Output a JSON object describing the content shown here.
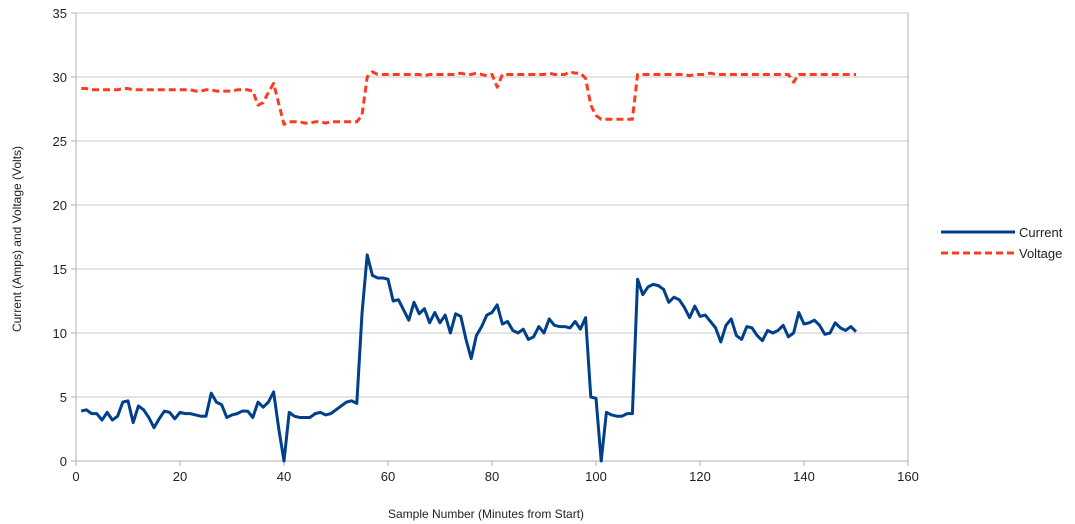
{
  "chart_data": {
    "type": "line",
    "title": "",
    "xlabel": "Sample Number (Minutes from Start)",
    "ylabel": "Current (Amps) and Voltage (Volts)",
    "xlim": [
      0,
      160
    ],
    "ylim": [
      0,
      35
    ],
    "x_ticks": [
      0,
      20,
      40,
      60,
      80,
      100,
      120,
      140,
      160
    ],
    "y_ticks": [
      0,
      5,
      10,
      15,
      20,
      25,
      30,
      35
    ],
    "grid": true,
    "legend_position": "right",
    "series": [
      {
        "name": "Current",
        "color": "#003f8a",
        "style": "solid",
        "points": [
          [
            1,
            3.9
          ],
          [
            2,
            4.0
          ],
          [
            3,
            3.7
          ],
          [
            4,
            3.7
          ],
          [
            5,
            3.2
          ],
          [
            6,
            3.8
          ],
          [
            7,
            3.2
          ],
          [
            8,
            3.5
          ],
          [
            9,
            4.6
          ],
          [
            10,
            4.7
          ],
          [
            11,
            3.0
          ],
          [
            12,
            4.3
          ],
          [
            13,
            4.0
          ],
          [
            14,
            3.4
          ],
          [
            15,
            2.6
          ],
          [
            16,
            3.3
          ],
          [
            17,
            3.9
          ],
          [
            18,
            3.8
          ],
          [
            19,
            3.3
          ],
          [
            20,
            3.8
          ],
          [
            21,
            3.7
          ],
          [
            22,
            3.7
          ],
          [
            23,
            3.6
          ],
          [
            24,
            3.5
          ],
          [
            25,
            3.5
          ],
          [
            26,
            5.3
          ],
          [
            27,
            4.6
          ],
          [
            28,
            4.4
          ],
          [
            29,
            3.4
          ],
          [
            30,
            3.6
          ],
          [
            31,
            3.7
          ],
          [
            32,
            3.9
          ],
          [
            33,
            3.9
          ],
          [
            34,
            3.4
          ],
          [
            35,
            4.6
          ],
          [
            36,
            4.2
          ],
          [
            37,
            4.6
          ],
          [
            38,
            5.4
          ],
          [
            39,
            2.5
          ],
          [
            40,
            0.0
          ],
          [
            41,
            3.8
          ],
          [
            42,
            3.5
          ],
          [
            43,
            3.4
          ],
          [
            44,
            3.4
          ],
          [
            45,
            3.4
          ],
          [
            46,
            3.7
          ],
          [
            47,
            3.8
          ],
          [
            48,
            3.6
          ],
          [
            49,
            3.7
          ],
          [
            50,
            4.0
          ],
          [
            51,
            4.3
          ],
          [
            52,
            4.6
          ],
          [
            53,
            4.7
          ],
          [
            54,
            4.5
          ],
          [
            55,
            11.5
          ],
          [
            56,
            16.1
          ],
          [
            57,
            14.5
          ],
          [
            58,
            14.3
          ],
          [
            59,
            14.3
          ],
          [
            60,
            14.2
          ],
          [
            61,
            12.5
          ],
          [
            62,
            12.6
          ],
          [
            63,
            11.8
          ],
          [
            64,
            11.0
          ],
          [
            65,
            12.4
          ],
          [
            66,
            11.5
          ],
          [
            67,
            11.9
          ],
          [
            68,
            10.8
          ],
          [
            69,
            11.6
          ],
          [
            70,
            10.8
          ],
          [
            71,
            11.4
          ],
          [
            72,
            10.0
          ],
          [
            73,
            11.5
          ],
          [
            74,
            11.3
          ],
          [
            75,
            9.5
          ],
          [
            76,
            8.0
          ],
          [
            77,
            9.8
          ],
          [
            78,
            10.5
          ],
          [
            79,
            11.4
          ],
          [
            80,
            11.6
          ],
          [
            81,
            12.2
          ],
          [
            82,
            10.7
          ],
          [
            83,
            10.9
          ],
          [
            84,
            10.2
          ],
          [
            85,
            10.0
          ],
          [
            86,
            10.3
          ],
          [
            87,
            9.5
          ],
          [
            88,
            9.7
          ],
          [
            89,
            10.5
          ],
          [
            90,
            10.0
          ],
          [
            91,
            11.1
          ],
          [
            92,
            10.6
          ],
          [
            93,
            10.5
          ],
          [
            94,
            10.5
          ],
          [
            95,
            10.4
          ],
          [
            96,
            10.9
          ],
          [
            97,
            10.3
          ],
          [
            98,
            11.2
          ],
          [
            99,
            5.0
          ],
          [
            100,
            4.9
          ],
          [
            101,
            0.0
          ],
          [
            102,
            3.8
          ],
          [
            103,
            3.6
          ],
          [
            104,
            3.5
          ],
          [
            105,
            3.5
          ],
          [
            106,
            3.7
          ],
          [
            107,
            3.7
          ],
          [
            108,
            14.2
          ],
          [
            109,
            13.0
          ],
          [
            110,
            13.6
          ],
          [
            111,
            13.8
          ],
          [
            112,
            13.7
          ],
          [
            113,
            13.4
          ],
          [
            114,
            12.4
          ],
          [
            115,
            12.8
          ],
          [
            116,
            12.6
          ],
          [
            117,
            12.0
          ],
          [
            118,
            11.2
          ],
          [
            119,
            12.1
          ],
          [
            120,
            11.3
          ],
          [
            121,
            11.4
          ],
          [
            122,
            10.9
          ],
          [
            123,
            10.4
          ],
          [
            124,
            9.3
          ],
          [
            125,
            10.6
          ],
          [
            126,
            11.1
          ],
          [
            127,
            9.8
          ],
          [
            128,
            9.5
          ],
          [
            129,
            10.5
          ],
          [
            130,
            10.4
          ],
          [
            131,
            9.8
          ],
          [
            132,
            9.4
          ],
          [
            133,
            10.2
          ],
          [
            134,
            10.0
          ],
          [
            135,
            10.2
          ],
          [
            136,
            10.6
          ],
          [
            137,
            9.7
          ],
          [
            138,
            10.0
          ],
          [
            139,
            11.6
          ],
          [
            140,
            10.7
          ],
          [
            141,
            10.8
          ],
          [
            142,
            11.0
          ],
          [
            143,
            10.6
          ],
          [
            144,
            9.9
          ],
          [
            145,
            10.0
          ],
          [
            146,
            10.8
          ],
          [
            147,
            10.4
          ],
          [
            148,
            10.2
          ],
          [
            149,
            10.5
          ],
          [
            150,
            10.1
          ]
        ]
      },
      {
        "name": "Voltage",
        "color": "#ff3b1f",
        "style": "dashed",
        "points": [
          [
            1,
            29.1
          ],
          [
            2,
            29.1
          ],
          [
            3,
            29.0
          ],
          [
            4,
            29.0
          ],
          [
            5,
            29.0
          ],
          [
            6,
            29.0
          ],
          [
            7,
            29.0
          ],
          [
            8,
            29.0
          ],
          [
            9,
            29.1
          ],
          [
            10,
            29.1
          ],
          [
            11,
            29.0
          ],
          [
            12,
            29.0
          ],
          [
            13,
            29.0
          ],
          [
            14,
            29.0
          ],
          [
            15,
            29.0
          ],
          [
            16,
            29.0
          ],
          [
            17,
            29.0
          ],
          [
            18,
            29.0
          ],
          [
            19,
            29.0
          ],
          [
            20,
            29.0
          ],
          [
            21,
            29.0
          ],
          [
            22,
            29.0
          ],
          [
            23,
            28.9
          ],
          [
            24,
            28.9
          ],
          [
            25,
            29.0
          ],
          [
            26,
            29.0
          ],
          [
            27,
            28.9
          ],
          [
            28,
            28.9
          ],
          [
            29,
            28.9
          ],
          [
            30,
            28.9
          ],
          [
            31,
            29.0
          ],
          [
            32,
            29.0
          ],
          [
            33,
            29.0
          ],
          [
            34,
            28.9
          ],
          [
            35,
            27.8
          ],
          [
            36,
            28.0
          ],
          [
            37,
            28.8
          ],
          [
            38,
            29.5
          ],
          [
            39,
            27.9
          ],
          [
            40,
            26.3
          ],
          [
            41,
            26.5
          ],
          [
            42,
            26.5
          ],
          [
            43,
            26.5
          ],
          [
            44,
            26.4
          ],
          [
            45,
            26.4
          ],
          [
            46,
            26.5
          ],
          [
            47,
            26.5
          ],
          [
            48,
            26.4
          ],
          [
            49,
            26.5
          ],
          [
            50,
            26.5
          ],
          [
            51,
            26.5
          ],
          [
            52,
            26.5
          ],
          [
            53,
            26.5
          ],
          [
            54,
            26.5
          ],
          [
            55,
            27.0
          ],
          [
            56,
            30.0
          ],
          [
            57,
            30.4
          ],
          [
            58,
            30.2
          ],
          [
            59,
            30.2
          ],
          [
            60,
            30.2
          ],
          [
            61,
            30.2
          ],
          [
            62,
            30.2
          ],
          [
            63,
            30.2
          ],
          [
            64,
            30.2
          ],
          [
            65,
            30.2
          ],
          [
            66,
            30.2
          ],
          [
            67,
            30.1
          ],
          [
            68,
            30.2
          ],
          [
            69,
            30.2
          ],
          [
            70,
            30.2
          ],
          [
            71,
            30.2
          ],
          [
            72,
            30.2
          ],
          [
            73,
            30.2
          ],
          [
            74,
            30.3
          ],
          [
            75,
            30.2
          ],
          [
            76,
            30.2
          ],
          [
            77,
            30.3
          ],
          [
            78,
            30.2
          ],
          [
            79,
            30.1
          ],
          [
            80,
            30.2
          ],
          [
            81,
            29.2
          ],
          [
            82,
            30.2
          ],
          [
            83,
            30.2
          ],
          [
            84,
            30.2
          ],
          [
            85,
            30.2
          ],
          [
            86,
            30.2
          ],
          [
            87,
            30.2
          ],
          [
            88,
            30.2
          ],
          [
            89,
            30.2
          ],
          [
            90,
            30.2
          ],
          [
            91,
            30.3
          ],
          [
            92,
            30.2
          ],
          [
            93,
            30.2
          ],
          [
            94,
            30.2
          ],
          [
            95,
            30.4
          ],
          [
            96,
            30.3
          ],
          [
            97,
            30.3
          ],
          [
            98,
            29.9
          ],
          [
            99,
            27.8
          ],
          [
            100,
            27.0
          ],
          [
            101,
            26.7
          ],
          [
            102,
            26.7
          ],
          [
            103,
            26.7
          ],
          [
            104,
            26.7
          ],
          [
            105,
            26.7
          ],
          [
            106,
            26.7
          ],
          [
            107,
            26.7
          ],
          [
            108,
            30.2
          ],
          [
            109,
            30.2
          ],
          [
            110,
            30.2
          ],
          [
            111,
            30.2
          ],
          [
            112,
            30.2
          ],
          [
            113,
            30.2
          ],
          [
            114,
            30.2
          ],
          [
            115,
            30.2
          ],
          [
            116,
            30.2
          ],
          [
            117,
            30.2
          ],
          [
            118,
            30.1
          ],
          [
            119,
            30.2
          ],
          [
            120,
            30.2
          ],
          [
            121,
            30.2
          ],
          [
            122,
            30.3
          ],
          [
            123,
            30.2
          ],
          [
            124,
            30.2
          ],
          [
            125,
            30.2
          ],
          [
            126,
            30.2
          ],
          [
            127,
            30.2
          ],
          [
            128,
            30.2
          ],
          [
            129,
            30.2
          ],
          [
            130,
            30.2
          ],
          [
            131,
            30.2
          ],
          [
            132,
            30.2
          ],
          [
            133,
            30.2
          ],
          [
            134,
            30.2
          ],
          [
            135,
            30.2
          ],
          [
            136,
            30.2
          ],
          [
            137,
            30.2
          ],
          [
            138,
            29.6
          ],
          [
            139,
            30.2
          ],
          [
            140,
            30.2
          ],
          [
            141,
            30.2
          ],
          [
            142,
            30.2
          ],
          [
            143,
            30.2
          ],
          [
            144,
            30.2
          ],
          [
            145,
            30.2
          ],
          [
            146,
            30.2
          ],
          [
            147,
            30.2
          ],
          [
            148,
            30.2
          ],
          [
            149,
            30.2
          ],
          [
            150,
            30.2
          ]
        ]
      }
    ]
  }
}
